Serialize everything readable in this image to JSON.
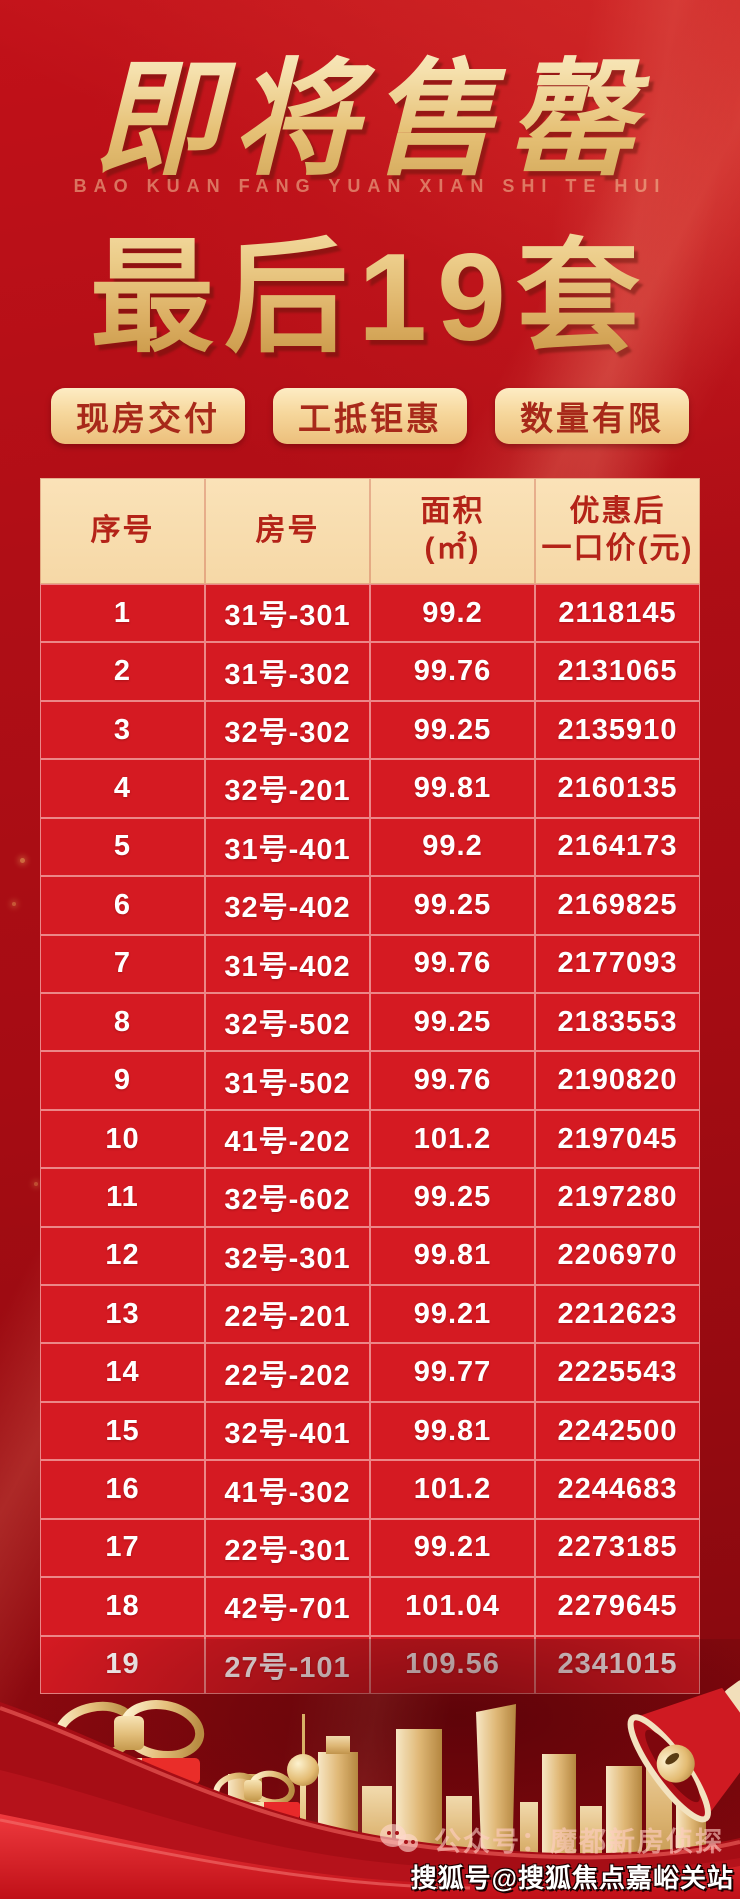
{
  "hero": {
    "title1": "即将售罄",
    "pinyin": "BAO KUAN FANG YUAN XIAN SHI TE HUI",
    "title2": "最后19套"
  },
  "badges": [
    {
      "label": "现房交付"
    },
    {
      "label": "工抵钜惠"
    },
    {
      "label": "数量有限"
    }
  ],
  "table": {
    "columns": [
      {
        "lines": [
          "序号"
        ]
      },
      {
        "lines": [
          "房号"
        ]
      },
      {
        "lines": [
          "面积",
          "(㎡)"
        ]
      },
      {
        "lines": [
          "优惠后",
          "一口价(元)"
        ]
      }
    ],
    "rows": [
      {
        "no": "1",
        "room": "31号-301",
        "area": "99.2",
        "price": "2118145"
      },
      {
        "no": "2",
        "room": "31号-302",
        "area": "99.76",
        "price": "2131065"
      },
      {
        "no": "3",
        "room": "32号-302",
        "area": "99.25",
        "price": "2135910"
      },
      {
        "no": "4",
        "room": "32号-201",
        "area": "99.81",
        "price": "2160135"
      },
      {
        "no": "5",
        "room": "31号-401",
        "area": "99.2",
        "price": "2164173"
      },
      {
        "no": "6",
        "room": "32号-402",
        "area": "99.25",
        "price": "2169825"
      },
      {
        "no": "7",
        "room": "31号-402",
        "area": "99.76",
        "price": "2177093"
      },
      {
        "no": "8",
        "room": "32号-502",
        "area": "99.25",
        "price": "2183553"
      },
      {
        "no": "9",
        "room": "31号-502",
        "area": "99.76",
        "price": "2190820"
      },
      {
        "no": "10",
        "room": "41号-202",
        "area": "101.2",
        "price": "2197045"
      },
      {
        "no": "11",
        "room": "32号-602",
        "area": "99.25",
        "price": "2197280"
      },
      {
        "no": "12",
        "room": "32号-301",
        "area": "99.81",
        "price": "2206970"
      },
      {
        "no": "13",
        "room": "22号-201",
        "area": "99.21",
        "price": "2212623"
      },
      {
        "no": "14",
        "room": "22号-202",
        "area": "99.77",
        "price": "2225543"
      },
      {
        "no": "15",
        "room": "32号-401",
        "area": "99.81",
        "price": "2242500"
      },
      {
        "no": "16",
        "room": "41号-302",
        "area": "101.2",
        "price": "2244683"
      },
      {
        "no": "17",
        "room": "22号-301",
        "area": "99.21",
        "price": "2273185"
      },
      {
        "no": "18",
        "room": "42号-701",
        "area": "101.04",
        "price": "2279645"
      },
      {
        "no": "19",
        "room": "27号-101",
        "area": "109.56",
        "price": "2341015"
      }
    ]
  },
  "footer": {
    "wechat_label": "公众号：魔都新房侦探",
    "watermark": "搜狐号@搜狐焦点嘉峪关站",
    "wechat_icon": "wechat-icon"
  },
  "colors": {
    "background_red": "#a50c13",
    "table_cell_red": "#d51a22",
    "header_cream": "#f8dcae",
    "header_text_red": "#b42318",
    "gold_accent": "#eccd8a",
    "badge_text_red": "#a8291a",
    "white_text": "#ffffff"
  }
}
